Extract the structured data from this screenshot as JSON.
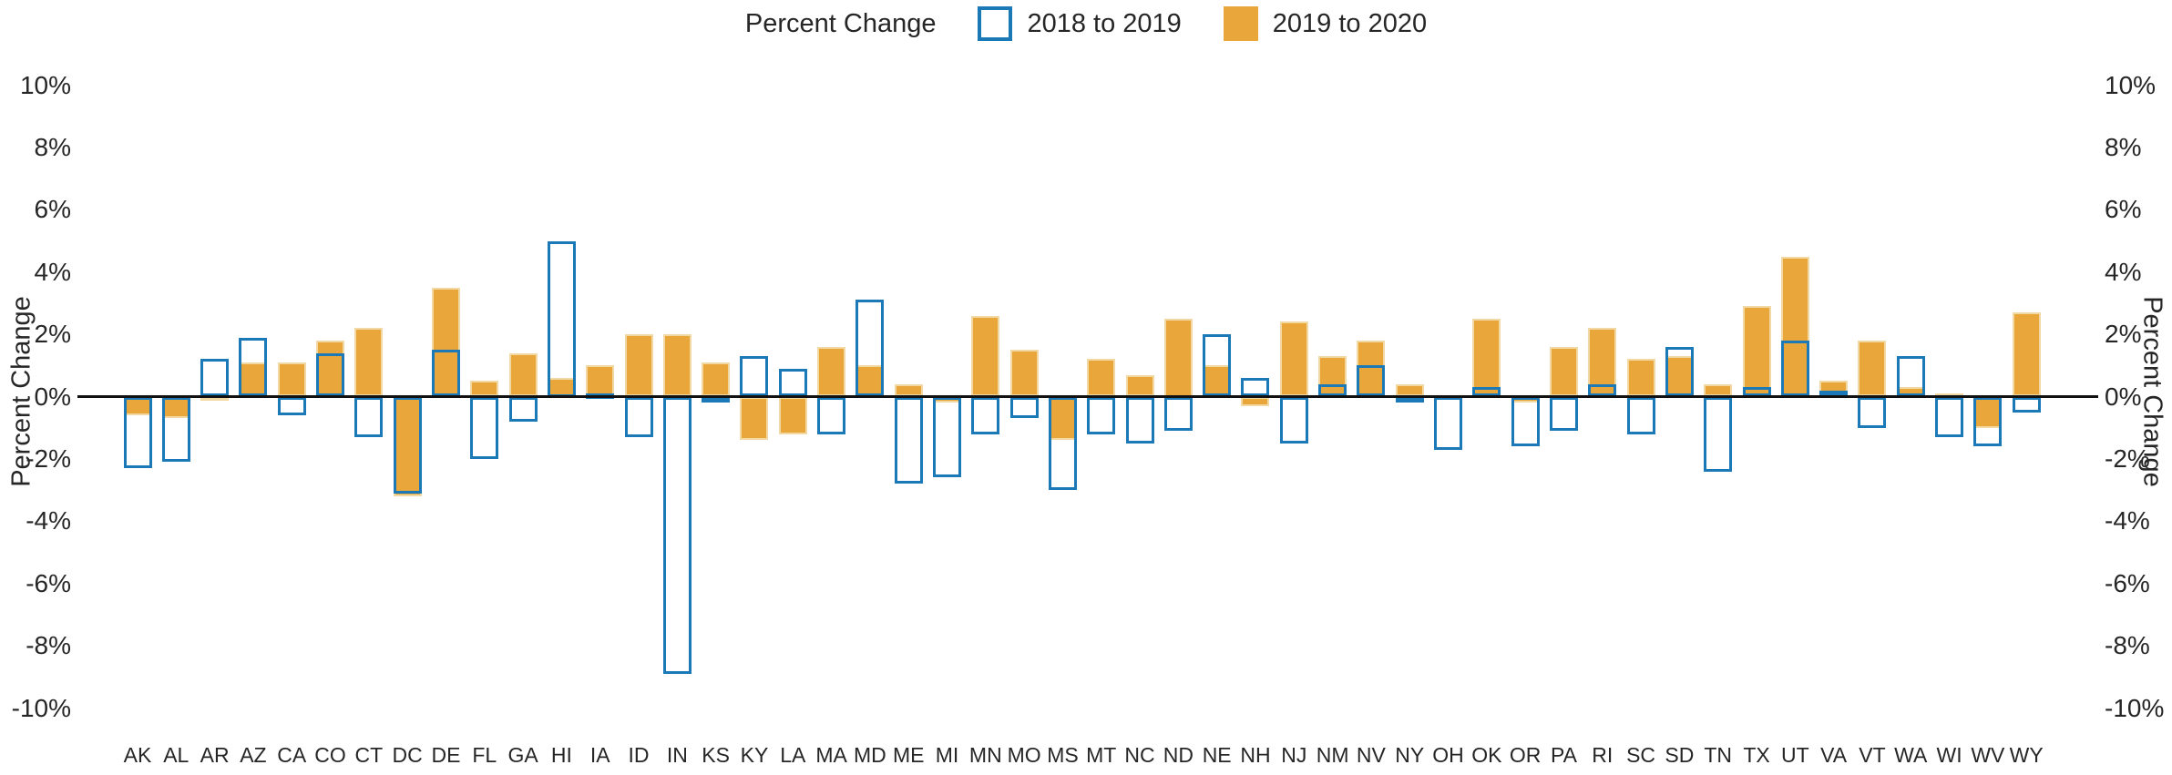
{
  "chart_data": {
    "type": "bar",
    "legend_title": "Percent Change",
    "ylabel": "Percent Change",
    "grid": false,
    "legend_position": "top",
    "ylim": [
      -10,
      10
    ],
    "yticks": [
      10,
      8,
      6,
      4,
      2,
      0,
      -2,
      -4,
      -6,
      -8,
      -10
    ],
    "ytick_suffix": "%",
    "categories": [
      "AK",
      "AL",
      "AR",
      "AZ",
      "CA",
      "CO",
      "CT",
      "DC",
      "DE",
      "FL",
      "GA",
      "HI",
      "IA",
      "ID",
      "IN",
      "KS",
      "KY",
      "LA",
      "MA",
      "MD",
      "ME",
      "MI",
      "MN",
      "MO",
      "MS",
      "MT",
      "NC",
      "ND",
      "NE",
      "NH",
      "NJ",
      "NM",
      "NV",
      "NY",
      "OH",
      "OK",
      "OR",
      "PA",
      "RI",
      "SC",
      "SD",
      "TN",
      "TX",
      "UT",
      "VA",
      "VT",
      "WA",
      "WI",
      "WV",
      "WY"
    ],
    "series": [
      {
        "name": "2018 to 2019",
        "style": "outline",
        "color": "#1b79b7",
        "values": [
          -2.3,
          -2.1,
          1.2,
          1.9,
          -0.6,
          1.4,
          -1.3,
          -3.1,
          1.5,
          -2.0,
          -0.8,
          5.0,
          0.1,
          -1.3,
          -8.9,
          -0.2,
          1.3,
          0.9,
          -1.2,
          3.1,
          -2.8,
          -2.6,
          -1.2,
          -0.7,
          -3.0,
          -1.2,
          -1.5,
          -1.1,
          2.0,
          0.6,
          -1.5,
          0.4,
          1.0,
          -0.2,
          -1.7,
          0.3,
          -1.6,
          -1.1,
          0.4,
          -1.2,
          1.6,
          -2.4,
          0.3,
          1.8,
          0.2,
          -1.0,
          1.3,
          -1.3,
          -1.6,
          -0.5
        ]
      },
      {
        "name": "2019 to 2020",
        "style": "filled",
        "color": "#e9a73b",
        "values": [
          -0.6,
          -0.7,
          -0.1,
          1.1,
          1.1,
          1.8,
          2.2,
          -3.2,
          3.5,
          0.5,
          1.4,
          0.6,
          1.0,
          2.0,
          2.0,
          1.1,
          -1.4,
          -1.2,
          1.6,
          1.0,
          0.4,
          -0.2,
          2.6,
          1.5,
          -1.4,
          1.2,
          0.7,
          2.5,
          1.0,
          -0.3,
          2.4,
          1.3,
          1.8,
          0.4,
          0.0,
          2.5,
          -0.2,
          1.6,
          2.2,
          1.2,
          1.3,
          0.4,
          2.9,
          4.5,
          0.5,
          1.8,
          0.3,
          0.1,
          -1.0,
          2.7
        ]
      }
    ]
  }
}
